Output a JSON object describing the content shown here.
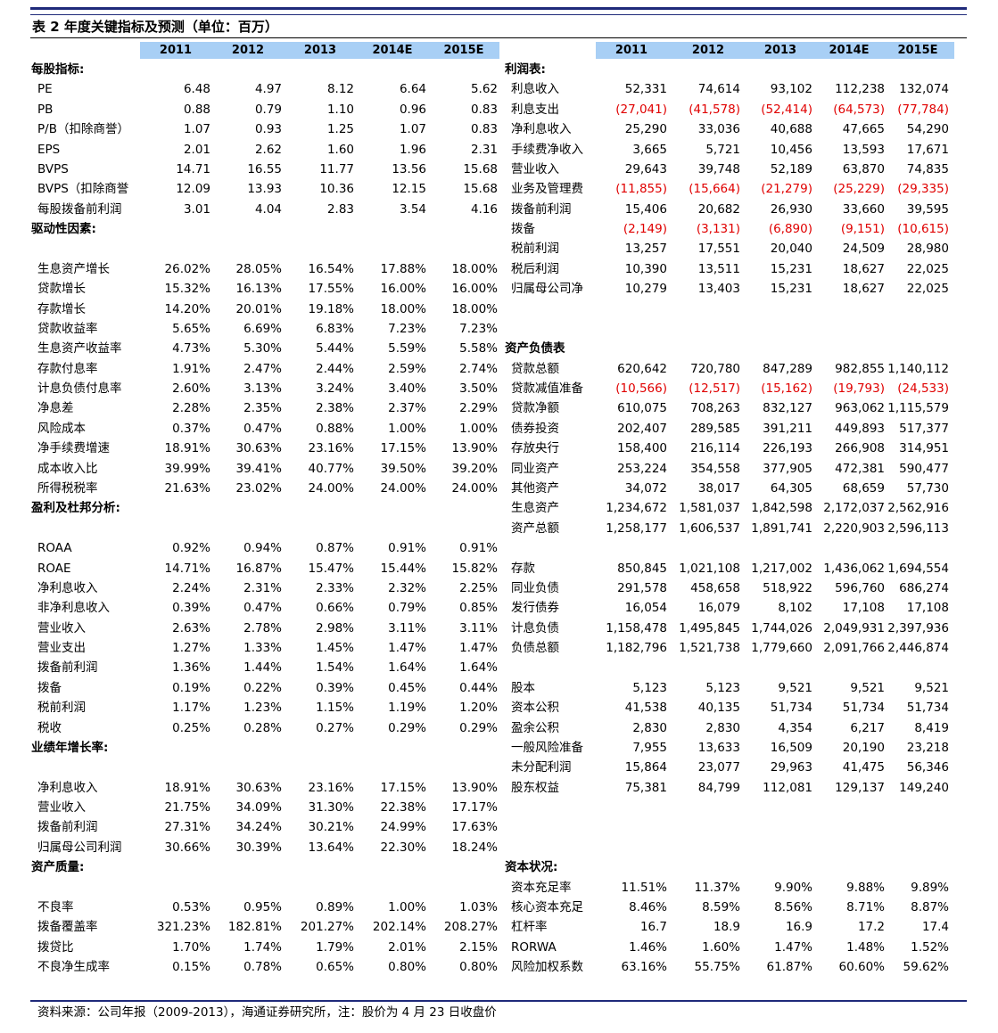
{
  "title": "表 2 年度关键指标及预测（单位：百万）",
  "left_years": [
    "2011",
    "2012",
    "2013",
    "2014E",
    "2015E"
  ],
  "right_years": [
    "2011",
    "2012",
    "2013",
    "2014E",
    "2015E"
  ],
  "left_rows": [
    {
      "section": "每股指标:"
    },
    {
      "label": "PE",
      "values": [
        "6.48",
        "4.97",
        "8.12",
        "6.64",
        "5.62"
      ]
    },
    {
      "label": "PB",
      "values": [
        "0.88",
        "0.79",
        "1.10",
        "0.96",
        "0.83"
      ]
    },
    {
      "label": "P/B（扣除商誉）",
      "values": [
        "1.07",
        "0.93",
        "1.25",
        "1.07",
        "0.83"
      ]
    },
    {
      "label": "EPS",
      "values": [
        "2.01",
        "2.62",
        "1.60",
        "1.96",
        "2.31"
      ]
    },
    {
      "label": "BVPS",
      "values": [
        "14.71",
        "16.55",
        "11.77",
        "13.56",
        "15.68"
      ]
    },
    {
      "label": "BVPS（扣除商誉",
      "values": [
        "12.09",
        "13.93",
        "10.36",
        "12.15",
        "15.68"
      ]
    },
    {
      "label": "每股拨备前利润",
      "values": [
        "3.01",
        "4.04",
        "2.83",
        "3.54",
        "4.16"
      ]
    },
    {
      "section": "驱动性因素:"
    },
    null,
    {
      "label": "生息资产增长",
      "values": [
        "26.02%",
        "28.05%",
        "16.54%",
        "17.88%",
        "18.00%"
      ]
    },
    {
      "label": "贷款增长",
      "values": [
        "15.32%",
        "16.13%",
        "17.55%",
        "16.00%",
        "16.00%"
      ]
    },
    {
      "label": "存款增长",
      "values": [
        "14.20%",
        "20.01%",
        "19.18%",
        "18.00%",
        "18.00%"
      ]
    },
    {
      "label": "贷款收益率",
      "values": [
        "5.65%",
        "6.69%",
        "6.83%",
        "7.23%",
        "7.23%"
      ]
    },
    {
      "label": "生息资产收益率",
      "values": [
        "4.73%",
        "5.30%",
        "5.44%",
        "5.59%",
        "5.58%"
      ]
    },
    {
      "label": "存款付息率",
      "values": [
        "1.91%",
        "2.47%",
        "2.44%",
        "2.59%",
        "2.74%"
      ]
    },
    {
      "label": "计息负债付息率",
      "values": [
        "2.60%",
        "3.13%",
        "3.24%",
        "3.40%",
        "3.50%"
      ]
    },
    {
      "label": "净息差",
      "values": [
        "2.28%",
        "2.35%",
        "2.38%",
        "2.37%",
        "2.29%"
      ]
    },
    {
      "label": "风险成本",
      "values": [
        "0.37%",
        "0.47%",
        "0.88%",
        "1.00%",
        "1.00%"
      ]
    },
    {
      "label": "净手续费增速",
      "values": [
        "18.91%",
        "30.63%",
        "23.16%",
        "17.15%",
        "13.90%"
      ]
    },
    {
      "label": "成本收入比",
      "values": [
        "39.99%",
        "39.41%",
        "40.77%",
        "39.50%",
        "39.20%"
      ]
    },
    {
      "label": "所得税税率",
      "values": [
        "21.63%",
        "23.02%",
        "24.00%",
        "24.00%",
        "24.00%"
      ]
    },
    {
      "section": "盈利及杜邦分析:"
    },
    null,
    {
      "label": "ROAA",
      "values": [
        "0.92%",
        "0.94%",
        "0.87%",
        "0.91%",
        "0.91%"
      ]
    },
    {
      "label": "ROAE",
      "values": [
        "14.71%",
        "16.87%",
        "15.47%",
        "15.44%",
        "15.82%"
      ]
    },
    {
      "label": "净利息收入",
      "values": [
        "2.24%",
        "2.31%",
        "2.33%",
        "2.32%",
        "2.25%"
      ]
    },
    {
      "label": "非净利息收入",
      "values": [
        "0.39%",
        "0.47%",
        "0.66%",
        "0.79%",
        "0.85%"
      ]
    },
    {
      "label": "营业收入",
      "values": [
        "2.63%",
        "2.78%",
        "2.98%",
        "3.11%",
        "3.11%"
      ]
    },
    {
      "label": "营业支出",
      "values": [
        "1.27%",
        "1.33%",
        "1.45%",
        "1.47%",
        "1.47%"
      ]
    },
    {
      "label": "拨备前利润",
      "values": [
        "1.36%",
        "1.44%",
        "1.54%",
        "1.64%",
        "1.64%"
      ]
    },
    {
      "label": "拨备",
      "values": [
        "0.19%",
        "0.22%",
        "0.39%",
        "0.45%",
        "0.44%"
      ]
    },
    {
      "label": "税前利润",
      "values": [
        "1.17%",
        "1.23%",
        "1.15%",
        "1.19%",
        "1.20%"
      ]
    },
    {
      "label": "税收",
      "values": [
        "0.25%",
        "0.28%",
        "0.27%",
        "0.29%",
        "0.29%"
      ]
    },
    {
      "section": "业绩年增长率:"
    },
    null,
    {
      "label": "净利息收入",
      "values": [
        "18.91%",
        "30.63%",
        "23.16%",
        "17.15%",
        "13.90%"
      ]
    },
    {
      "label": "营业收入",
      "values": [
        "21.75%",
        "34.09%",
        "31.30%",
        "22.38%",
        "17.17%"
      ]
    },
    {
      "label": "拨备前利润",
      "values": [
        "27.31%",
        "34.24%",
        "30.21%",
        "24.99%",
        "17.63%"
      ]
    },
    {
      "label": "归属母公司利润",
      "values": [
        "30.66%",
        "30.39%",
        "13.64%",
        "22.30%",
        "18.24%"
      ]
    },
    {
      "section": "资产质量:"
    },
    null,
    {
      "label": "不良率",
      "values": [
        "0.53%",
        "0.95%",
        "0.89%",
        "1.00%",
        "1.03%"
      ]
    },
    {
      "label": "拨备覆盖率",
      "values": [
        "321.23%",
        "182.81%",
        "201.27%",
        "202.14%",
        "208.27%"
      ]
    },
    {
      "label": "拨贷比",
      "values": [
        "1.70%",
        "1.74%",
        "1.79%",
        "2.01%",
        "2.15%"
      ]
    },
    {
      "label": "不良净生成率",
      "values": [
        "0.15%",
        "0.78%",
        "0.65%",
        "0.80%",
        "0.80%"
      ]
    }
  ],
  "right_rows": [
    {
      "section": "利润表:"
    },
    {
      "label": "利息收入",
      "values": [
        "52,331",
        "74,614",
        "93,102",
        "112,238",
        "132,074"
      ]
    },
    {
      "label": "利息支出",
      "values": [
        "(27,041)",
        "(41,578)",
        "(52,414)",
        "(64,573)",
        "(77,784)"
      ]
    },
    {
      "label": "净利息收入",
      "values": [
        "25,290",
        "33,036",
        "40,688",
        "47,665",
        "54,290"
      ]
    },
    {
      "label": "手续费净收入",
      "values": [
        "3,665",
        "5,721",
        "10,456",
        "13,593",
        "17,671"
      ]
    },
    {
      "label": "营业收入",
      "values": [
        "29,643",
        "39,748",
        "52,189",
        "63,870",
        "74,835"
      ]
    },
    {
      "label": "业务及管理费",
      "values": [
        "(11,855)",
        "(15,664)",
        "(21,279)",
        "(25,229)",
        "(29,335)"
      ]
    },
    {
      "label": "拨备前利润",
      "values": [
        "15,406",
        "20,682",
        "26,930",
        "33,660",
        "39,595"
      ]
    },
    {
      "label": "拨备",
      "values": [
        "(2,149)",
        "(3,131)",
        "(6,890)",
        "(9,151)",
        "(10,615)"
      ]
    },
    {
      "label": "税前利润",
      "values": [
        "13,257",
        "17,551",
        "20,040",
        "24,509",
        "28,980"
      ]
    },
    {
      "label": "税后利润",
      "values": [
        "10,390",
        "13,511",
        "15,231",
        "18,627",
        "22,025"
      ]
    },
    {
      "label": "归属母公司净",
      "values": [
        "10,279",
        "13,403",
        "15,231",
        "18,627",
        "22,025"
      ]
    },
    null,
    null,
    {
      "section": "资产负债表"
    },
    {
      "label": "贷款总额",
      "values": [
        "620,642",
        "720,780",
        "847,289",
        "982,855",
        "1,140,112"
      ]
    },
    {
      "label": "贷款减值准备",
      "values": [
        "(10,566)",
        "(12,517)",
        "(15,162)",
        "(19,793)",
        "(24,533)"
      ]
    },
    {
      "label": "贷款净额",
      "values": [
        "610,075",
        "708,263",
        "832,127",
        "963,062",
        "1,115,579"
      ]
    },
    {
      "label": "债券投资",
      "values": [
        "202,407",
        "289,585",
        "391,211",
        "449,893",
        "517,377"
      ]
    },
    {
      "label": "存放央行",
      "values": [
        "158,400",
        "216,114",
        "226,193",
        "266,908",
        "314,951"
      ]
    },
    {
      "label": "同业资产",
      "values": [
        "253,224",
        "354,558",
        "377,905",
        "472,381",
        "590,477"
      ]
    },
    {
      "label": "其他资产",
      "values": [
        "34,072",
        "38,017",
        "64,305",
        "68,659",
        "57,730"
      ]
    },
    {
      "label": "生息资产",
      "values": [
        "1,234,672",
        "1,581,037",
        "1,842,598",
        "2,172,037",
        "2,562,916"
      ]
    },
    {
      "label": "资产总额",
      "values": [
        "1,258,177",
        "1,606,537",
        "1,891,741",
        "2,220,903",
        "2,596,113"
      ]
    },
    null,
    {
      "label": "存款",
      "values": [
        "850,845",
        "1,021,108",
        "1,217,002",
        "1,436,062",
        "1,694,554"
      ]
    },
    {
      "label": "同业负债",
      "values": [
        "291,578",
        "458,658",
        "518,922",
        "596,760",
        "686,274"
      ]
    },
    {
      "label": "发行债券",
      "values": [
        "16,054",
        "16,079",
        "8,102",
        "17,108",
        "17,108"
      ]
    },
    {
      "label": "计息负债",
      "values": [
        "1,158,478",
        "1,495,845",
        "1,744,026",
        "2,049,931",
        "2,397,936"
      ]
    },
    {
      "label": "负债总额",
      "values": [
        "1,182,796",
        "1,521,738",
        "1,779,660",
        "2,091,766",
        "2,446,874"
      ]
    },
    null,
    {
      "label": "股本",
      "values": [
        "5,123",
        "5,123",
        "9,521",
        "9,521",
        "9,521"
      ]
    },
    {
      "label": "资本公积",
      "values": [
        "41,538",
        "40,135",
        "51,734",
        "51,734",
        "51,734"
      ]
    },
    {
      "label": "盈余公积",
      "values": [
        "2,830",
        "2,830",
        "4,354",
        "6,217",
        "8,419"
      ]
    },
    {
      "label": "一般风险准备",
      "values": [
        "7,955",
        "13,633",
        "16,509",
        "20,190",
        "23,218"
      ]
    },
    {
      "label": "未分配利润",
      "values": [
        "15,864",
        "23,077",
        "29,963",
        "41,475",
        "56,346"
      ]
    },
    {
      "label": "股东权益",
      "values": [
        "75,381",
        "84,799",
        "112,081",
        "129,137",
        "149,240"
      ]
    },
    null,
    null,
    null,
    {
      "section": "资本状况:"
    },
    {
      "label": "资本充足率",
      "values": [
        "11.51%",
        "11.37%",
        "9.90%",
        "9.88%",
        "9.89%"
      ]
    },
    {
      "label": "核心资本充足",
      "values": [
        "8.46%",
        "8.59%",
        "8.56%",
        "8.71%",
        "8.87%"
      ]
    },
    {
      "label": "杠杆率",
      "values": [
        "16.7",
        "18.9",
        "16.9",
        "17.2",
        "17.4"
      ]
    },
    {
      "label": "RORWA",
      "values": [
        "1.46%",
        "1.60%",
        "1.47%",
        "1.48%",
        "1.52%"
      ]
    },
    {
      "label": "风险加权系数",
      "values": [
        "63.16%",
        "55.75%",
        "61.87%",
        "60.60%",
        "59.62%"
      ]
    }
  ],
  "footer": "资料来源：公司年报（2009-2013），海通证券研究所，注：股价为 4 月 23 日收盘价"
}
